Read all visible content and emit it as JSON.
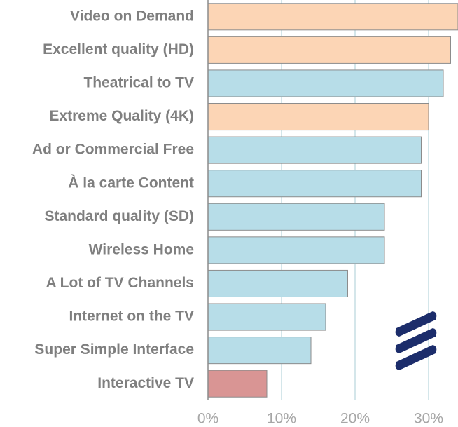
{
  "chart_data": {
    "type": "barh",
    "categories": [
      "Video on Demand",
      "Excellent quality (HD)",
      "Theatrical to TV",
      "Extreme Quality (4K)",
      "Ad or Commercial Free",
      "À la carte Content",
      "Standard quality (SD)",
      "Wireless Home",
      "A Lot of TV Channels",
      "Internet on the TV",
      "Super Simple Interface",
      "Interactive TV"
    ],
    "values": [
      34,
      33,
      32,
      30,
      29,
      29,
      24,
      24,
      19,
      16,
      14,
      8
    ],
    "colors": [
      "#fcd5b5",
      "#fcd5b5",
      "#b7dde8",
      "#fcd5b5",
      "#b7dde8",
      "#b7dde8",
      "#b7dde8",
      "#b7dde8",
      "#b7dde8",
      "#b7dde8",
      "#b7dde8",
      "#d99594"
    ],
    "xlim": [
      0,
      34
    ],
    "xticks": [
      {
        "value": 0,
        "label": "0%"
      },
      {
        "value": 10,
        "label": "10%"
      },
      {
        "value": 20,
        "label": "20%"
      },
      {
        "value": 30,
        "label": "30%"
      }
    ],
    "grid": true,
    "logo_text": "ERICSSON"
  }
}
